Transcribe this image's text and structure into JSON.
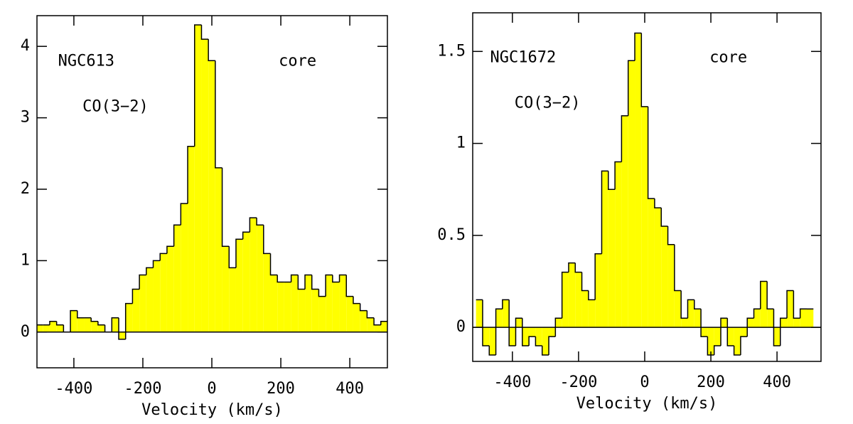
{
  "chart_data": [
    {
      "type": "histogram",
      "xlabel": "Velocity (km/s)",
      "annotations": [
        "NGC613",
        "CO(3−2)",
        "core"
      ],
      "color": "#ffff00",
      "bins": [
        -510,
        -490,
        -470,
        -450,
        -430,
        -410,
        -390,
        -370,
        -350,
        -330,
        -310,
        -290,
        -270,
        -250,
        -230,
        -210,
        -190,
        -170,
        -150,
        -130,
        -110,
        -90,
        -70,
        -50,
        -30,
        -10,
        10,
        30,
        50,
        70,
        90,
        110,
        130,
        150,
        170,
        190,
        210,
        230,
        250,
        270,
        290,
        310,
        330,
        350,
        370,
        390,
        410,
        430,
        450,
        470,
        490,
        510
      ],
      "values": [
        0.1,
        0.1,
        0.15,
        0.1,
        0.0,
        0.3,
        0.2,
        0.2,
        0.15,
        0.1,
        0.0,
        0.2,
        -0.1,
        0.4,
        0.6,
        0.8,
        0.9,
        1.0,
        1.1,
        1.2,
        1.5,
        1.8,
        2.6,
        4.3,
        4.1,
        3.8,
        2.3,
        1.2,
        0.9,
        1.3,
        1.4,
        1.6,
        1.5,
        1.1,
        0.8,
        0.7,
        0.7,
        0.8,
        0.6,
        0.8,
        0.6,
        0.5,
        0.8,
        0.7,
        0.8,
        0.5,
        0.4,
        0.3,
        0.2,
        0.1,
        0.15
      ],
      "xlim": [
        -507,
        509
      ],
      "xticks": [
        -400,
        -200,
        0,
        200,
        400
      ],
      "ylim": [
        -0.5,
        4.43
      ],
      "yticks": [
        0,
        1,
        2,
        3,
        4
      ]
    },
    {
      "type": "histogram",
      "xlabel": "Velocity (km/s)",
      "annotations": [
        "NGC1672",
        "CO(3−2)",
        "core"
      ],
      "color": "#ffff00",
      "bins": [
        -510,
        -490,
        -470,
        -450,
        -430,
        -410,
        -390,
        -370,
        -350,
        -330,
        -310,
        -290,
        -270,
        -250,
        -230,
        -210,
        -190,
        -170,
        -150,
        -130,
        -110,
        -90,
        -70,
        -50,
        -30,
        -10,
        10,
        30,
        50,
        70,
        90,
        110,
        130,
        150,
        170,
        190,
        210,
        230,
        250,
        270,
        290,
        310,
        330,
        350,
        370,
        390,
        410,
        430,
        450,
        470,
        490,
        510
      ],
      "values": [
        0.15,
        -0.1,
        -0.15,
        0.1,
        0.15,
        -0.1,
        0.05,
        -0.1,
        -0.05,
        -0.1,
        -0.15,
        -0.05,
        0.05,
        0.3,
        0.35,
        0.3,
        0.2,
        0.15,
        0.4,
        0.85,
        0.75,
        0.9,
        1.15,
        1.45,
        1.6,
        1.2,
        0.7,
        0.65,
        0.55,
        0.45,
        0.2,
        0.05,
        0.15,
        0.1,
        -0.05,
        -0.15,
        -0.1,
        0.05,
        -0.1,
        -0.15,
        -0.05,
        0.05,
        0.1,
        0.25,
        0.1,
        -0.1,
        0.05,
        0.2,
        0.05,
        0.1,
        0.1
      ],
      "xlim": [
        -520,
        533
      ],
      "xticks": [
        -400,
        -200,
        0,
        200,
        400
      ],
      "ylim": [
        -0.185,
        1.71
      ],
      "yticks": [
        0,
        0.5,
        1,
        1.5
      ]
    }
  ]
}
